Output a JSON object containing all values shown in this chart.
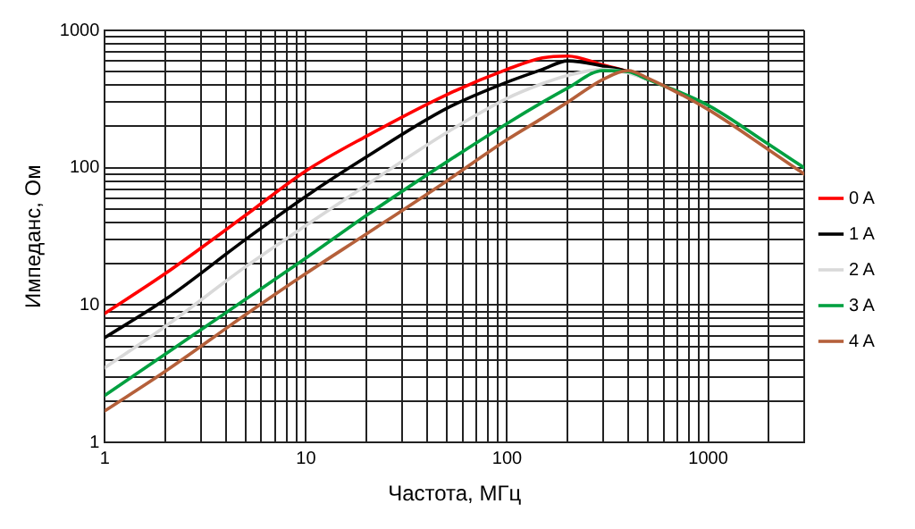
{
  "chart_data": {
    "type": "line",
    "xlabel": "Частота, МГц",
    "ylabel": "Импеданс, Ом",
    "log": "xy",
    "grid": true,
    "legend": "right",
    "marker": "none",
    "line_style": "solid",
    "xlim": [
      1,
      3000
    ],
    "ylim": [
      1,
      1000
    ],
    "xticks": [
      1,
      {
        "value": 2,
        "label": null
      },
      {
        "value": 3,
        "label": null
      },
      {
        "value": 4,
        "label": null
      },
      {
        "value": 5,
        "label": null
      },
      {
        "value": 6,
        "label": null
      },
      {
        "value": 7,
        "label": null
      },
      {
        "value": 8,
        "label": null
      },
      {
        "value": 9,
        "label": null
      },
      10,
      {
        "value": 20,
        "label": null
      },
      {
        "value": 30,
        "label": null
      },
      {
        "value": 40,
        "label": null
      },
      {
        "value": 50,
        "label": null
      },
      {
        "value": 60,
        "label": null
      },
      {
        "value": 70,
        "label": null
      },
      {
        "value": 80,
        "label": null
      },
      {
        "value": 90,
        "label": null
      },
      100,
      {
        "value": 200,
        "label": null
      },
      {
        "value": 300,
        "label": null
      },
      {
        "value": 400,
        "label": null
      },
      {
        "value": 500,
        "label": null
      },
      {
        "value": 600,
        "label": null
      },
      {
        "value": 700,
        "label": null
      },
      {
        "value": 800,
        "label": null
      },
      {
        "value": 900,
        "label": null
      },
      1000,
      {
        "value": 2000,
        "label": null
      },
      {
        "value": 3000,
        "label": null
      }
    ],
    "yticks": [
      1,
      {
        "value": 2,
        "label": null
      },
      {
        "value": 3,
        "label": null
      },
      {
        "value": 4,
        "label": null
      },
      {
        "value": 5,
        "label": null
      },
      {
        "value": 6,
        "label": null
      },
      {
        "value": 7,
        "label": null
      },
      {
        "value": 8,
        "label": null
      },
      {
        "value": 9,
        "label": null
      },
      10,
      {
        "value": 20,
        "label": null
      },
      {
        "value": 30,
        "label": null
      },
      {
        "value": 40,
        "label": null
      },
      {
        "value": 50,
        "label": null
      },
      {
        "value": 60,
        "label": null
      },
      {
        "value": 70,
        "label": null
      },
      {
        "value": 80,
        "label": null
      },
      {
        "value": 90,
        "label": null
      },
      100,
      {
        "value": 200,
        "label": null
      },
      {
        "value": 300,
        "label": null
      },
      {
        "value": 400,
        "label": null
      },
      {
        "value": 500,
        "label": null
      },
      {
        "value": 600,
        "label": null
      },
      {
        "value": 700,
        "label": null
      },
      {
        "value": 800,
        "label": null
      },
      {
        "value": 900,
        "label": null
      },
      1000
    ],
    "x": [
      1,
      2,
      5,
      10,
      20,
      50,
      100,
      150,
      200,
      300,
      400,
      500,
      1000,
      2000,
      3000
    ],
    "series": [
      {
        "name": "0 A",
        "color": "#ff0000",
        "values": [
          8.7,
          17,
          45,
          95,
          170,
          340,
          520,
          630,
          650,
          560,
          500,
          440,
          null,
          null,
          null
        ]
      },
      {
        "name": "1 A",
        "color": "#000000",
        "values": [
          5.8,
          11,
          30,
          62,
          120,
          270,
          420,
          520,
          600,
          550,
          500,
          440,
          null,
          null,
          null
        ]
      },
      {
        "name": "2 A",
        "color": "#d9d9d9",
        "values": [
          3.5,
          7,
          19,
          38,
          75,
          180,
          320,
          410,
          470,
          520,
          490,
          440,
          null,
          null,
          null
        ]
      },
      {
        "name": "3 A",
        "color": "#00a040",
        "values": [
          2.2,
          4.4,
          11,
          22,
          45,
          110,
          210,
          300,
          380,
          510,
          500,
          440,
          285,
          148,
          100
        ]
      },
      {
        "name": "4 A",
        "color": "#b5603a",
        "values": [
          1.7,
          3.3,
          8.5,
          17,
          33,
          80,
          160,
          230,
          300,
          440,
          510,
          450,
          265,
          135,
          90
        ]
      }
    ]
  }
}
